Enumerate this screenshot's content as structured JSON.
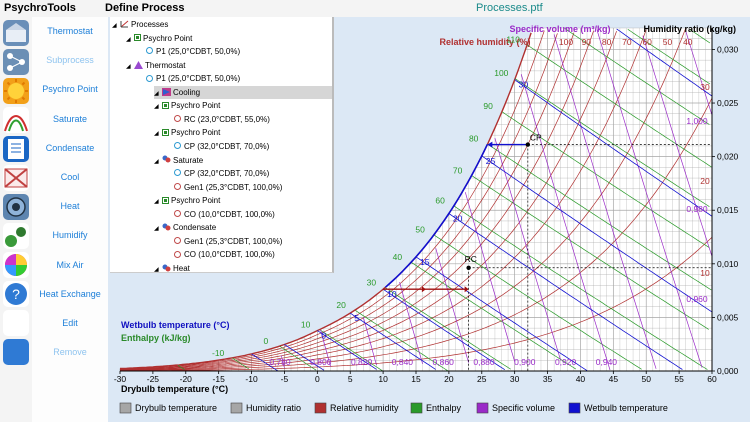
{
  "app_title": "PsychroTools",
  "panel_title": "Define Process",
  "file_name": "Processes.ptf",
  "menu": [
    "Thermostat",
    "Subprocess",
    "Psychro Point",
    "Saturate",
    "Condensate",
    "Cool",
    "Heat",
    "Humidify",
    "Mix Air",
    "Heat Exchange",
    "Edit",
    "Remove"
  ],
  "menu_disabled": [
    "Subprocess",
    "Remove"
  ],
  "icons": [
    "thermostat-icon",
    "subprocess-icon",
    "psychro-point-icon",
    "saturate-icon",
    "condensate-icon",
    "cool-icon",
    "heat-icon",
    "humidify-icon",
    "mix-air-icon",
    "heat-exchange-icon",
    "color-wheel-icon",
    "help-icon"
  ],
  "tree": [
    {
      "level": 0,
      "expand": "open",
      "icon": "process",
      "label": "Processes"
    },
    {
      "level": 1,
      "expand": "open",
      "icon": "psychro",
      "label": "Psychro Point"
    },
    {
      "level": 2,
      "expand": "",
      "icon": "point",
      "label": "P1 (25,0°CDBT, 50,0%)"
    },
    {
      "level": 1,
      "expand": "open",
      "icon": "thermostat",
      "label": "Thermostat"
    },
    {
      "level": 2,
      "expand": "",
      "icon": "point",
      "label": "P1 (25,0°CDBT, 50,0%)"
    },
    {
      "level": 2,
      "expand": "open",
      "icon": "cooling",
      "label": "Cooling",
      "selected": true
    },
    {
      "level": 3,
      "expand": "open",
      "icon": "psychro",
      "label": "Psychro Point"
    },
    {
      "level": 4,
      "expand": "",
      "icon": "node",
      "label": "RC (23,0°CDBT, 55,0%)"
    },
    {
      "level": 3,
      "expand": "open",
      "icon": "psychro",
      "label": "Psychro Point"
    },
    {
      "level": 4,
      "expand": "",
      "icon": "point",
      "label": "CP (32,0°CDBT, 70,0%)"
    },
    {
      "level": 3,
      "expand": "open",
      "icon": "saturate",
      "label": "Saturate"
    },
    {
      "level": 4,
      "expand": "",
      "icon": "point",
      "label": "CP (32,0°CDBT, 70,0%)"
    },
    {
      "level": 4,
      "expand": "",
      "icon": "node",
      "label": "Gen1 (25,3°CDBT, 100,0%)"
    },
    {
      "level": 3,
      "expand": "open",
      "icon": "psychro",
      "label": "Psychro Point"
    },
    {
      "level": 4,
      "expand": "",
      "icon": "node",
      "label": "CO (10,0°CDBT, 100,0%)"
    },
    {
      "level": 3,
      "expand": "open",
      "icon": "condensate",
      "label": "Condensate"
    },
    {
      "level": 4,
      "expand": "",
      "icon": "node",
      "label": "Gen1 (25,3°CDBT, 100,0%)"
    },
    {
      "level": 4,
      "expand": "",
      "icon": "node",
      "label": "CO (10,0°CDBT, 100,0%)"
    },
    {
      "level": 3,
      "expand": "open",
      "icon": "heat",
      "label": "Heat"
    }
  ],
  "chart_data": {
    "type": "psychrometric",
    "xlabel": "Drybulb temperature (°C)",
    "x_range": [
      -30,
      60
    ],
    "x_ticks": [
      -30,
      -25,
      -20,
      -15,
      -10,
      -5,
      0,
      5,
      10,
      15,
      20,
      25,
      30,
      35,
      40,
      45,
      50,
      55,
      60
    ],
    "ylabel": "Humidity ratio (kg/kg)",
    "y_range": [
      0,
      0.032
    ],
    "y_ticks": [
      "0,000",
      "0,005",
      "0,010",
      "0,015",
      "0,020",
      "0,025",
      "0,030"
    ],
    "y_tick_values": [
      0,
      0.005,
      0.01,
      0.015,
      0.02,
      0.025,
      0.03
    ],
    "rh_label": "Relative humidity (%)",
    "rh_ticks": [
      100,
      90,
      80,
      70,
      60,
      50,
      40
    ],
    "specific_volume_label": "Specific volume (m³/kg)",
    "specific_volume_ticks_bottom": [
      "0,780",
      "0,800",
      "0,820",
      "0,840",
      "0,860",
      "0,880",
      "0,900",
      "0,920",
      "0,940"
    ],
    "specific_volume_ticks_right": [
      "1,000",
      "0,980",
      "0,960"
    ],
    "enthalpy_label": "Enthalpy (kJ/kg)",
    "enthalpy_ticks": [
      -10,
      0,
      10,
      20,
      30,
      40,
      50,
      60,
      70,
      80,
      90,
      100,
      110,
      120,
      130,
      140,
      150
    ],
    "wetbulb_label": "Wetbulb temperature (°C)",
    "wetbulb_ticks": [
      0,
      5,
      10,
      15,
      20,
      25,
      30,
      35
    ],
    "right_red_ticks": [
      30,
      20,
      10
    ],
    "points": [
      {
        "name": "CP",
        "tdb": 32.0,
        "rh": 70.0
      },
      {
        "name": "RC",
        "tdb": 23.0,
        "rh": 55.0
      }
    ],
    "legend": [
      "Drybulb temperature",
      "Humidity ratio",
      "Relative humidity",
      "Enthalpy",
      "Specific volume",
      "Wetbulb temperature"
    ],
    "colors": {
      "drybulb": "#a6a6a6",
      "humidity_ratio": "#a6a6a6",
      "relative_humidity": "#b03030",
      "enthalpy": "#2a9a2a",
      "specific_volume": "#9a2ac8",
      "wetbulb": "#1010d0"
    }
  }
}
